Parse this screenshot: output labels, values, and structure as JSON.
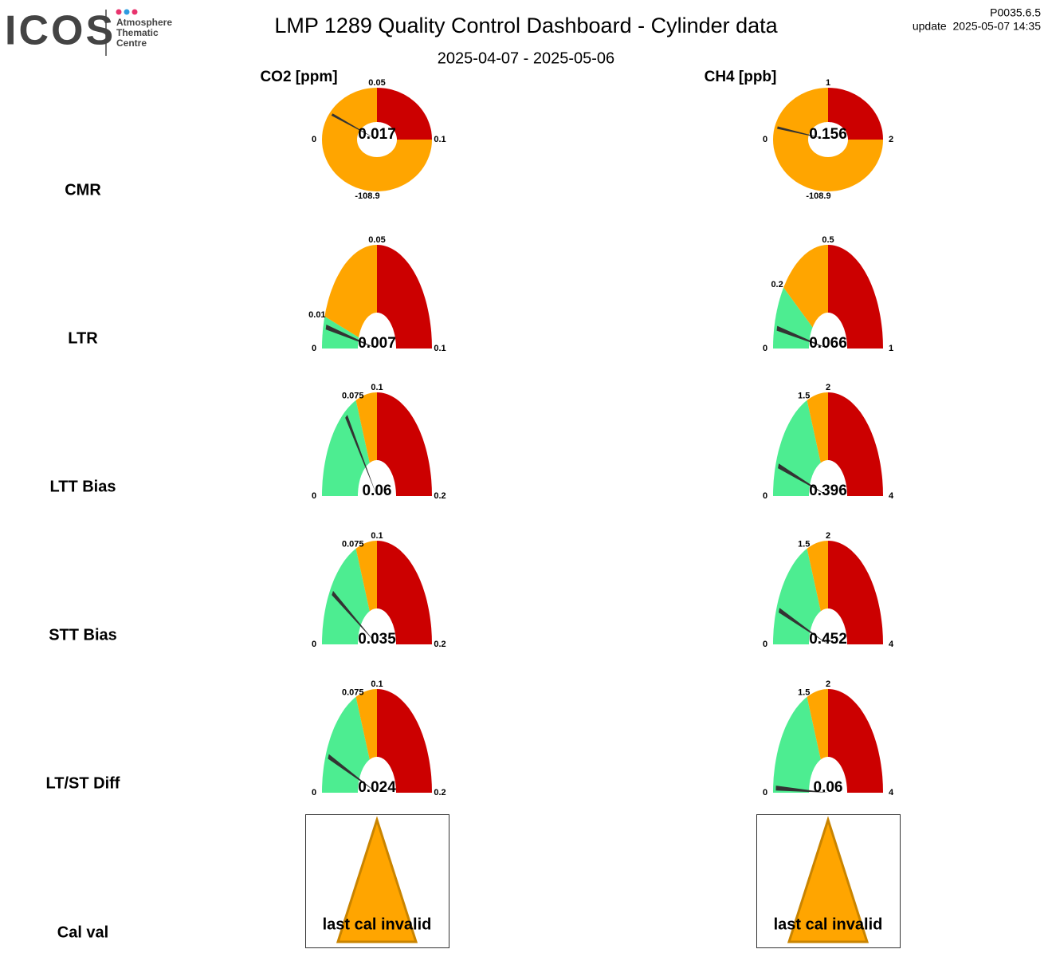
{
  "header": {
    "logo": "ICOS",
    "logo_sub": [
      "Atmosphere",
      "Thematic",
      "Centre"
    ],
    "title": "LMP 1289 Quality Control Dashboard - Cylinder data",
    "subtitle": "2025-04-07 - 2025-05-06",
    "version": "P0035.6.5",
    "update": "update  2025-05-07 14:35"
  },
  "columns": [
    "CO2 [ppm]",
    "CH4 [ppb]"
  ],
  "rows": [
    "CMR",
    "LTR",
    "LTT Bias",
    "STT Bias",
    "LT/ST Diff",
    "Cal val"
  ],
  "gauges": [
    [
      {
        "ticks": [
          0,
          0.05,
          0.1
        ],
        "low": -108.9,
        "value": 0.017,
        "zone_colors": [
          "#ffa500",
          "#cc0000"
        ],
        "low_color": "#ffa500"
      },
      {
        "ticks": [
          0,
          1,
          2
        ],
        "low": -108.9,
        "value": 0.156,
        "zone_colors": [
          "#ffa500",
          "#cc0000"
        ],
        "low_color": "#ffa500"
      }
    ],
    [
      {
        "ticks": [
          0,
          0.01,
          0.05,
          0.1
        ],
        "value": 0.007,
        "zone_colors": [
          "#4ded91",
          "#ffa500",
          "#cc0000"
        ]
      },
      {
        "ticks": [
          0,
          0.2,
          0.5,
          1
        ],
        "value": 0.066,
        "zone_colors": [
          "#4ded91",
          "#ffa500",
          "#cc0000"
        ]
      }
    ],
    [
      {
        "ticks": [
          0,
          0.075,
          0.1,
          0.2
        ],
        "value": 0.06,
        "zone_colors": [
          "#4ded91",
          "#ffa500",
          "#cc0000"
        ]
      },
      {
        "ticks": [
          0,
          1.5,
          2,
          4
        ],
        "value": 0.396,
        "zone_colors": [
          "#4ded91",
          "#ffa500",
          "#cc0000"
        ]
      }
    ],
    [
      {
        "ticks": [
          0,
          0.075,
          0.1,
          0.2
        ],
        "value": 0.035,
        "zone_colors": [
          "#4ded91",
          "#ffa500",
          "#cc0000"
        ]
      },
      {
        "ticks": [
          0,
          1.5,
          2,
          4
        ],
        "value": 0.452,
        "zone_colors": [
          "#4ded91",
          "#ffa500",
          "#cc0000"
        ]
      }
    ],
    [
      {
        "ticks": [
          0,
          0.075,
          0.1,
          0.2
        ],
        "value": 0.024,
        "zone_colors": [
          "#4ded91",
          "#ffa500",
          "#cc0000"
        ]
      },
      {
        "ticks": [
          0,
          1.5,
          2,
          4
        ],
        "value": 0.06,
        "zone_colors": [
          "#4ded91",
          "#ffa500",
          "#cc0000"
        ]
      }
    ]
  ],
  "cal_val": [
    "last cal invalid",
    "last cal invalid"
  ]
}
